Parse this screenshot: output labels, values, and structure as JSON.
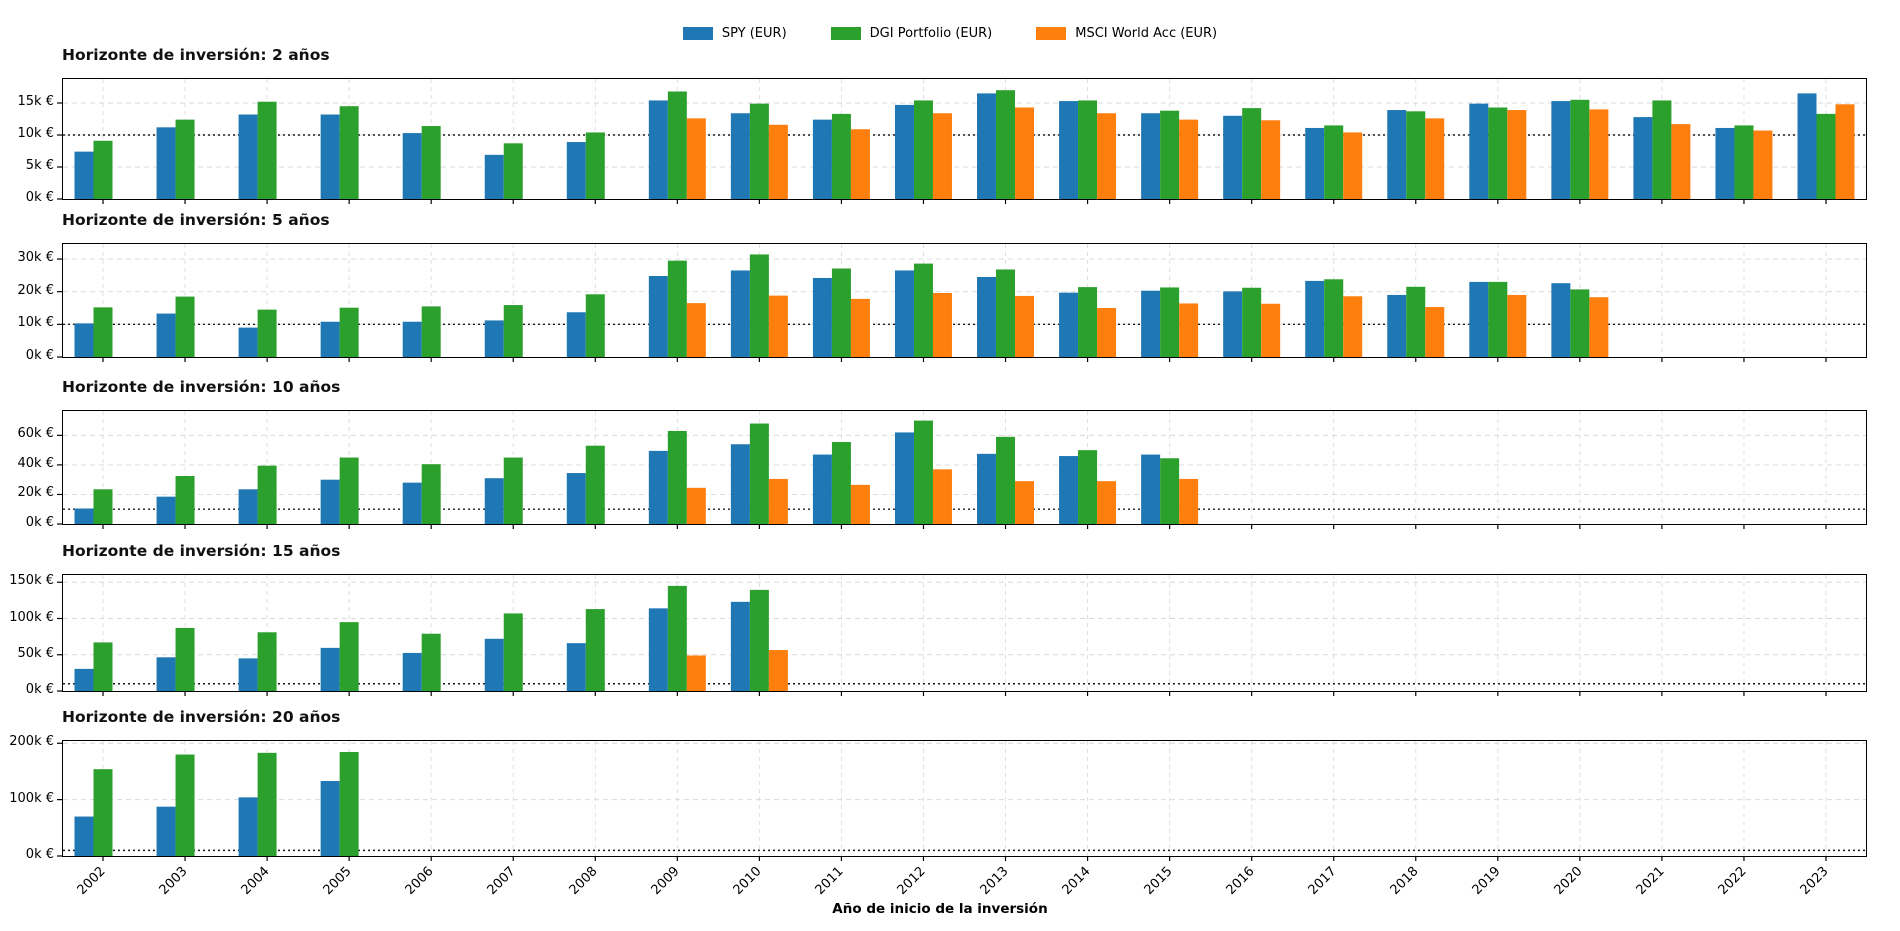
{
  "legend": {
    "items": [
      {
        "label": "SPY (EUR)",
        "color": "#1f77b4"
      },
      {
        "label": "DGI Portfolio (EUR)",
        "color": "#2ca02c"
      },
      {
        "label": "MSCI World Acc (EUR)",
        "color": "#ff7f0e"
      }
    ]
  },
  "x_axis": {
    "label": "Año de inicio de la inversión",
    "years": [
      "2002",
      "2003",
      "2004",
      "2005",
      "2006",
      "2007",
      "2008",
      "2009",
      "2010",
      "2011",
      "2012",
      "2013",
      "2014",
      "2015",
      "2016",
      "2017",
      "2018",
      "2019",
      "2020",
      "2021",
      "2022",
      "2023"
    ]
  },
  "unit": "k€",
  "reference_line_value": 10,
  "chart_data": [
    {
      "type": "bar",
      "title": "Horizonte de inversión: 2 años",
      "ylim": [
        0,
        18.75
      ],
      "yticks": [
        {
          "v": 0,
          "label": "0k €"
        },
        {
          "v": 5,
          "label": "5k €"
        },
        {
          "v": 10,
          "label": "10k €"
        },
        {
          "v": 15,
          "label": "15k €"
        }
      ],
      "ref_value": 10,
      "series": [
        {
          "name": "SPY (EUR)",
          "values": [
            7.4,
            11.2,
            13.2,
            13.2,
            10.3,
            6.9,
            8.9,
            15.4,
            13.4,
            12.4,
            14.7,
            16.5,
            15.3,
            13.4,
            13.0,
            11.1,
            13.9,
            14.9,
            15.3,
            12.8,
            11.1,
            16.5
          ]
        },
        {
          "name": "DGI Portfolio (EUR)",
          "values": [
            9.1,
            12.4,
            15.2,
            14.5,
            11.4,
            8.7,
            10.4,
            16.8,
            14.9,
            13.3,
            15.4,
            17.0,
            15.4,
            13.8,
            14.2,
            11.5,
            13.7,
            14.3,
            15.5,
            15.4,
            11.5,
            13.3
          ]
        },
        {
          "name": "MSCI World Acc (EUR)",
          "values": [
            null,
            null,
            null,
            null,
            null,
            null,
            null,
            12.6,
            11.6,
            10.9,
            13.4,
            14.3,
            13.4,
            12.4,
            12.3,
            10.4,
            12.6,
            13.9,
            14.0,
            11.7,
            10.7,
            14.8
          ]
        }
      ]
    },
    {
      "type": "bar",
      "title": "Horizonte de inversión: 5 años",
      "ylim": [
        0,
        34.6
      ],
      "yticks": [
        {
          "v": 0,
          "label": "0k €"
        },
        {
          "v": 10,
          "label": "10k €"
        },
        {
          "v": 20,
          "label": "20k €"
        },
        {
          "v": 30,
          "label": "30k €"
        }
      ],
      "ref_value": 10,
      "series": [
        {
          "name": "SPY (EUR)",
          "values": [
            10.3,
            13.3,
            9.0,
            10.8,
            10.8,
            11.2,
            13.7,
            24.8,
            26.5,
            24.2,
            26.5,
            24.5,
            19.7,
            20.3,
            20.1,
            23.3,
            19.0,
            23.0,
            22.6,
            null,
            null,
            null
          ]
        },
        {
          "name": "DGI Portfolio (EUR)",
          "values": [
            15.2,
            18.5,
            14.5,
            15.1,
            15.5,
            15.9,
            19.2,
            29.5,
            31.4,
            27.1,
            28.6,
            26.8,
            21.4,
            21.3,
            21.2,
            23.8,
            21.5,
            23.0,
            20.7,
            null,
            null,
            null
          ]
        },
        {
          "name": "MSCI World Acc (EUR)",
          "values": [
            null,
            null,
            null,
            null,
            null,
            null,
            null,
            16.5,
            18.8,
            17.8,
            19.6,
            18.7,
            15.0,
            16.4,
            16.3,
            18.6,
            15.3,
            19.0,
            18.3,
            null,
            null,
            null
          ]
        }
      ]
    },
    {
      "type": "bar",
      "title": "Horizonte de inversión: 10 años",
      "ylim": [
        0,
        76.5
      ],
      "yticks": [
        {
          "v": 0,
          "label": "0k €"
        },
        {
          "v": 20,
          "label": "20k €"
        },
        {
          "v": 40,
          "label": "40k €"
        },
        {
          "v": 60,
          "label": "60k €"
        }
      ],
      "ref_value": 10,
      "series": [
        {
          "name": "SPY (EUR)",
          "values": [
            10.5,
            18.5,
            23.5,
            30.0,
            28.0,
            31.0,
            34.5,
            49.5,
            54.0,
            47.0,
            62.0,
            47.5,
            46.0,
            47.0,
            null,
            null,
            null,
            null,
            null,
            null,
            null,
            null
          ]
        },
        {
          "name": "DGI Portfolio (EUR)",
          "values": [
            23.5,
            32.5,
            39.5,
            45.0,
            40.5,
            45.0,
            53.0,
            63.0,
            68.0,
            55.5,
            70.0,
            59.0,
            50.0,
            44.5,
            null,
            null,
            null,
            null,
            null,
            null,
            null,
            null
          ]
        },
        {
          "name": "MSCI World Acc (EUR)",
          "values": [
            null,
            null,
            null,
            null,
            null,
            null,
            null,
            24.5,
            30.5,
            26.5,
            37.0,
            29.0,
            29.0,
            30.5,
            null,
            null,
            null,
            null,
            null,
            null,
            null,
            null
          ]
        }
      ]
    },
    {
      "type": "bar",
      "title": "Horizonte de inversión: 15 años",
      "ylim": [
        0,
        160
      ],
      "yticks": [
        {
          "v": 0,
          "label": "0k €"
        },
        {
          "v": 50,
          "label": "50k €"
        },
        {
          "v": 100,
          "label": "100k €"
        },
        {
          "v": 150,
          "label": "150k €"
        }
      ],
      "ref_value": 10,
      "series": [
        {
          "name": "SPY (EUR)",
          "values": [
            30.5,
            46.5,
            45.0,
            59.5,
            52.5,
            72.0,
            66.0,
            114.0,
            123.0,
            null,
            null,
            null,
            null,
            null,
            null,
            null,
            null,
            null,
            null,
            null,
            null,
            null
          ]
        },
        {
          "name": "DGI Portfolio (EUR)",
          "values": [
            67.0,
            87.0,
            81.0,
            95.0,
            79.0,
            107.0,
            113.0,
            145.0,
            139.5,
            null,
            null,
            null,
            null,
            null,
            null,
            null,
            null,
            null,
            null,
            null,
            null,
            null
          ]
        },
        {
          "name": "MSCI World Acc (EUR)",
          "values": [
            null,
            null,
            null,
            null,
            null,
            null,
            null,
            49.0,
            56.5,
            null,
            null,
            null,
            null,
            null,
            null,
            null,
            null,
            null,
            null,
            null,
            null,
            null
          ]
        }
      ]
    },
    {
      "type": "bar",
      "title": "Horizonte de inversión: 20 años",
      "ylim": [
        0,
        204
      ],
      "yticks": [
        {
          "v": 0,
          "label": "0k €"
        },
        {
          "v": 100,
          "label": "100k €"
        },
        {
          "v": 200,
          "label": "200k €"
        }
      ],
      "ref_value": 10,
      "series": [
        {
          "name": "SPY (EUR)",
          "values": [
            70.0,
            87.5,
            104.0,
            133.0,
            null,
            null,
            null,
            null,
            null,
            null,
            null,
            null,
            null,
            null,
            null,
            null,
            null,
            null,
            null,
            null,
            null,
            null
          ]
        },
        {
          "name": "DGI Portfolio (EUR)",
          "values": [
            154.0,
            180.0,
            183.0,
            184.5,
            null,
            null,
            null,
            null,
            null,
            null,
            null,
            null,
            null,
            null,
            null,
            null,
            null,
            null,
            null,
            null,
            null,
            null
          ]
        },
        {
          "name": "MSCI World Acc (EUR)",
          "values": [
            null,
            null,
            null,
            null,
            null,
            null,
            null,
            null,
            null,
            null,
            null,
            null,
            null,
            null,
            null,
            null,
            null,
            null,
            null,
            null,
            null,
            null
          ]
        }
      ]
    }
  ]
}
